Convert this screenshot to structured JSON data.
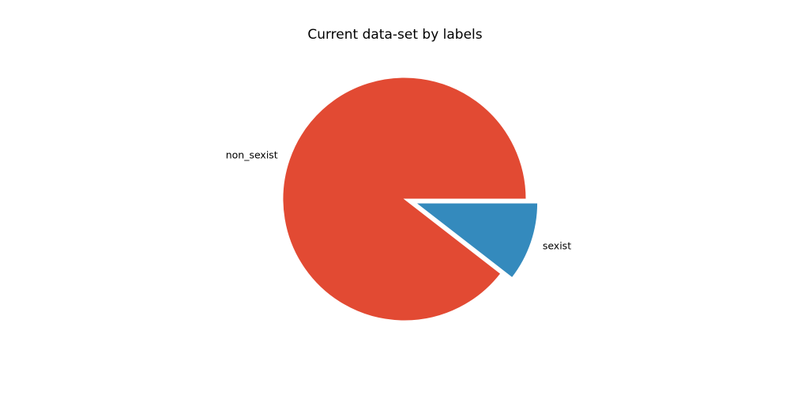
{
  "chart_data": {
    "type": "pie",
    "title": "Current data-set by labels",
    "slices": [
      {
        "label": "non_sexist",
        "value": 89.5,
        "color": "#E24A33",
        "explode": false
      },
      {
        "label": "sexist",
        "value": 10.5,
        "color": "#348ABD",
        "explode": true
      }
    ],
    "start_angle_deg": 0,
    "direction": "counterclockwise",
    "wedge_edge_color": "#ffffff"
  }
}
